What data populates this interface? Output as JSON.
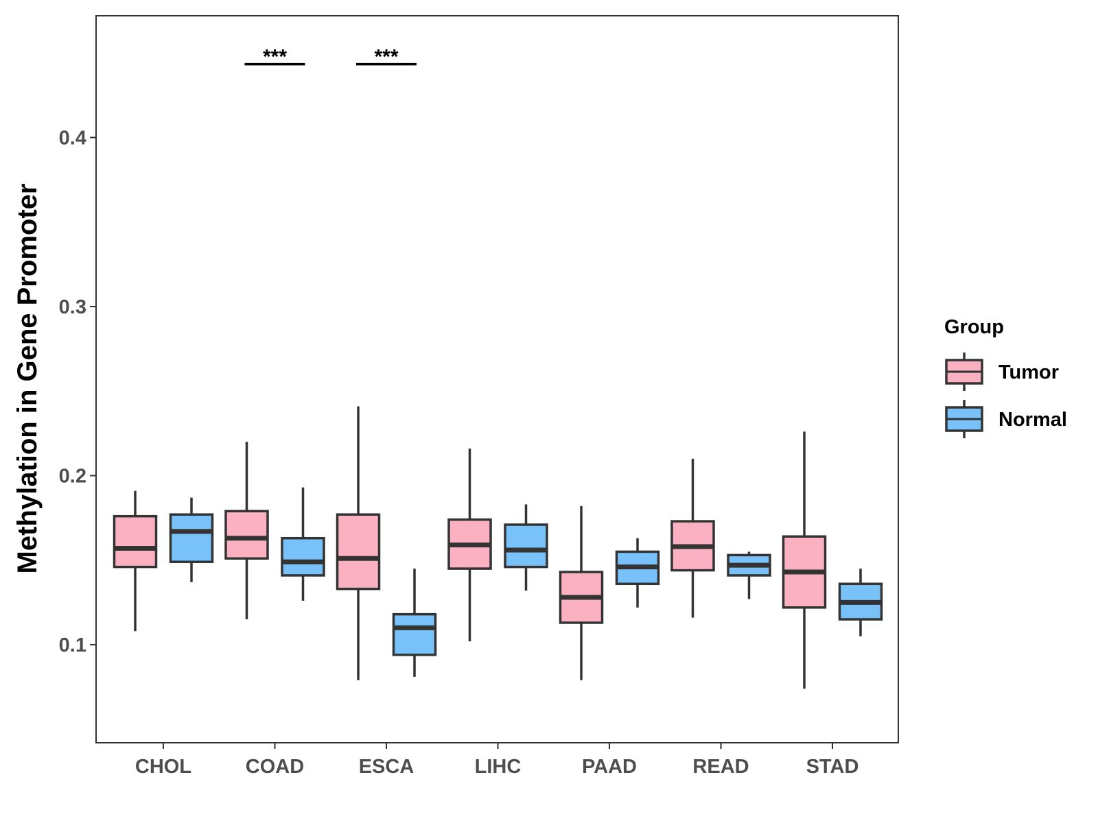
{
  "chart_data": {
    "type": "boxplot",
    "ylabel": "Methylation in Gene Promoter",
    "xlabel": "",
    "ylim": [
      0.042,
      0.472
    ],
    "yticks": [
      0.1,
      0.2,
      0.3,
      0.4
    ],
    "ytick_labels": [
      "0.1",
      "0.2",
      "0.3",
      "0.4"
    ],
    "categories": [
      "CHOL",
      "COAD",
      "ESCA",
      "LIHC",
      "PAAD",
      "READ",
      "STAD"
    ],
    "legend": {
      "title": "Group",
      "position": "right",
      "entries": [
        {
          "name": "Tumor",
          "color": "#fbb1c1"
        },
        {
          "name": "Normal",
          "color": "#78c1f9"
        }
      ]
    },
    "series": [
      {
        "name": "Tumor",
        "color": "#fbb1c1",
        "boxes": [
          {
            "category": "CHOL",
            "whisker_low": 0.108,
            "q1": 0.146,
            "median": 0.157,
            "q3": 0.176,
            "whisker_high": 0.191
          },
          {
            "category": "COAD",
            "whisker_low": 0.115,
            "q1": 0.151,
            "median": 0.163,
            "q3": 0.179,
            "whisker_high": 0.22
          },
          {
            "category": "ESCA",
            "whisker_low": 0.079,
            "q1": 0.133,
            "median": 0.151,
            "q3": 0.177,
            "whisker_high": 0.241
          },
          {
            "category": "LIHC",
            "whisker_low": 0.102,
            "q1": 0.145,
            "median": 0.159,
            "q3": 0.174,
            "whisker_high": 0.216
          },
          {
            "category": "PAAD",
            "whisker_low": 0.079,
            "q1": 0.113,
            "median": 0.128,
            "q3": 0.143,
            "whisker_high": 0.182
          },
          {
            "category": "READ",
            "whisker_low": 0.116,
            "q1": 0.144,
            "median": 0.158,
            "q3": 0.173,
            "whisker_high": 0.21
          },
          {
            "category": "STAD",
            "whisker_low": 0.074,
            "q1": 0.122,
            "median": 0.143,
            "q3": 0.164,
            "whisker_high": 0.226
          }
        ]
      },
      {
        "name": "Normal",
        "color": "#78c1f9",
        "boxes": [
          {
            "category": "CHOL",
            "whisker_low": 0.137,
            "q1": 0.149,
            "median": 0.167,
            "q3": 0.177,
            "whisker_high": 0.187
          },
          {
            "category": "COAD",
            "whisker_low": 0.126,
            "q1": 0.141,
            "median": 0.149,
            "q3": 0.163,
            "whisker_high": 0.193
          },
          {
            "category": "ESCA",
            "whisker_low": 0.081,
            "q1": 0.094,
            "median": 0.11,
            "q3": 0.118,
            "whisker_high": 0.145
          },
          {
            "category": "LIHC",
            "whisker_low": 0.132,
            "q1": 0.146,
            "median": 0.156,
            "q3": 0.171,
            "whisker_high": 0.183
          },
          {
            "category": "PAAD",
            "whisker_low": 0.122,
            "q1": 0.136,
            "median": 0.146,
            "q3": 0.155,
            "whisker_high": 0.163
          },
          {
            "category": "READ",
            "whisker_low": 0.127,
            "q1": 0.141,
            "median": 0.147,
            "q3": 0.153,
            "whisker_high": 0.155
          },
          {
            "category": "STAD",
            "whisker_low": 0.105,
            "q1": 0.115,
            "median": 0.125,
            "q3": 0.136,
            "whisker_high": 0.145
          }
        ]
      }
    ],
    "annotations": [
      {
        "category": "COAD",
        "text": "***",
        "y": 0.447
      },
      {
        "category": "ESCA",
        "text": "***",
        "y": 0.447
      }
    ],
    "grid": false
  }
}
